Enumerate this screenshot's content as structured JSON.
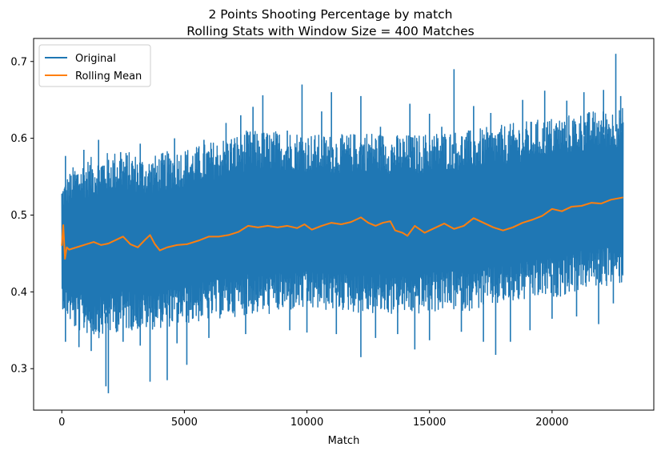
{
  "chart_data": {
    "type": "line",
    "title": "2 Points Shooting Percentage by match",
    "subtitle": "Rolling Stats with Window Size = 400 Matches",
    "xlabel": "Match",
    "ylabel": "",
    "xlim": [
      -1150,
      24150
    ],
    "ylim": [
      0.246,
      0.73
    ],
    "xticks": [
      0,
      5000,
      10000,
      15000,
      20000
    ],
    "xtick_labels": [
      "0",
      "5000",
      "10000",
      "15000",
      "20000"
    ],
    "yticks": [
      0.3,
      0.4,
      0.5,
      0.6,
      0.7
    ],
    "ytick_labels": [
      "0.3",
      "0.4",
      "0.5",
      "0.6",
      "0.7"
    ],
    "grid": false,
    "legend": "top-left",
    "series": [
      {
        "name": "Original",
        "color": "#1f77b4",
        "x_range": [
          0,
          22900
        ],
        "band_low": [
          [
            0,
            0.38
          ],
          [
            500,
            0.35
          ],
          [
            1500,
            0.34
          ],
          [
            2500,
            0.35
          ],
          [
            3500,
            0.35
          ],
          [
            4500,
            0.355
          ],
          [
            5500,
            0.36
          ],
          [
            6500,
            0.365
          ],
          [
            7500,
            0.37
          ],
          [
            8500,
            0.37
          ],
          [
            9500,
            0.375
          ],
          [
            10500,
            0.375
          ],
          [
            11500,
            0.375
          ],
          [
            12500,
            0.37
          ],
          [
            13500,
            0.37
          ],
          [
            14500,
            0.37
          ],
          [
            15500,
            0.375
          ],
          [
            16500,
            0.375
          ],
          [
            17500,
            0.38
          ],
          [
            18500,
            0.385
          ],
          [
            19500,
            0.39
          ],
          [
            20500,
            0.395
          ],
          [
            21500,
            0.405
          ],
          [
            22900,
            0.41
          ]
        ],
        "band_high": [
          [
            0,
            0.54
          ],
          [
            500,
            0.565
          ],
          [
            1500,
            0.58
          ],
          [
            2500,
            0.585
          ],
          [
            3500,
            0.575
          ],
          [
            4500,
            0.585
          ],
          [
            5500,
            0.59
          ],
          [
            6500,
            0.6
          ],
          [
            7500,
            0.61
          ],
          [
            8500,
            0.61
          ],
          [
            9500,
            0.61
          ],
          [
            10500,
            0.605
          ],
          [
            11500,
            0.605
          ],
          [
            12500,
            0.61
          ],
          [
            13500,
            0.605
          ],
          [
            14500,
            0.605
          ],
          [
            15500,
            0.61
          ],
          [
            16500,
            0.61
          ],
          [
            17500,
            0.615
          ],
          [
            18500,
            0.62
          ],
          [
            19500,
            0.625
          ],
          [
            20500,
            0.63
          ],
          [
            21500,
            0.635
          ],
          [
            22900,
            0.64
          ]
        ],
        "spikes_high": [
          [
            150,
            0.577
          ],
          [
            900,
            0.585
          ],
          [
            1500,
            0.598
          ],
          [
            2400,
            0.582
          ],
          [
            3200,
            0.593
          ],
          [
            4600,
            0.6
          ],
          [
            5800,
            0.598
          ],
          [
            6700,
            0.62
          ],
          [
            7300,
            0.63
          ],
          [
            7800,
            0.641
          ],
          [
            8200,
            0.656
          ],
          [
            9200,
            0.61
          ],
          [
            9800,
            0.67
          ],
          [
            10600,
            0.635
          ],
          [
            11000,
            0.66
          ],
          [
            12200,
            0.655
          ],
          [
            13000,
            0.615
          ],
          [
            14200,
            0.645
          ],
          [
            15000,
            0.632
          ],
          [
            15500,
            0.615
          ],
          [
            16000,
            0.69
          ],
          [
            16800,
            0.642
          ],
          [
            17500,
            0.633
          ],
          [
            18800,
            0.65
          ],
          [
            19700,
            0.662
          ],
          [
            20600,
            0.649
          ],
          [
            21300,
            0.66
          ],
          [
            22100,
            0.663
          ],
          [
            22600,
            0.71
          ],
          [
            22800,
            0.655
          ]
        ],
        "spikes_low": [
          [
            150,
            0.335
          ],
          [
            700,
            0.328
          ],
          [
            1200,
            0.323
          ],
          [
            1800,
            0.277
          ],
          [
            1900,
            0.268
          ],
          [
            2500,
            0.335
          ],
          [
            3200,
            0.33
          ],
          [
            3600,
            0.283
          ],
          [
            4300,
            0.285
          ],
          [
            4700,
            0.333
          ],
          [
            5100,
            0.305
          ],
          [
            6000,
            0.34
          ],
          [
            7500,
            0.345
          ],
          [
            9300,
            0.35
          ],
          [
            10000,
            0.347
          ],
          [
            11200,
            0.345
          ],
          [
            12200,
            0.315
          ],
          [
            12800,
            0.34
          ],
          [
            13700,
            0.345
          ],
          [
            14400,
            0.325
          ],
          [
            15000,
            0.337
          ],
          [
            16300,
            0.348
          ],
          [
            17200,
            0.335
          ],
          [
            17700,
            0.318
          ],
          [
            18300,
            0.335
          ],
          [
            19100,
            0.35
          ],
          [
            20000,
            0.365
          ],
          [
            21000,
            0.368
          ],
          [
            21900,
            0.358
          ],
          [
            22500,
            0.385
          ]
        ]
      },
      {
        "name": "Rolling Mean",
        "color": "#ff7f0e",
        "x": [
          0,
          60,
          130,
          200,
          300,
          600,
          1000,
          1300,
          1600,
          1900,
          2300,
          2500,
          2800,
          3100,
          3400,
          3600,
          3800,
          4000,
          4300,
          4700,
          5100,
          5600,
          6000,
          6400,
          6800,
          7200,
          7600,
          8000,
          8400,
          8800,
          9200,
          9600,
          9900,
          10200,
          10600,
          11000,
          11400,
          11800,
          12200,
          12500,
          12800,
          13100,
          13400,
          13600,
          13900,
          14100,
          14400,
          14800,
          15200,
          15600,
          16000,
          16400,
          16800,
          17200,
          17600,
          18000,
          18400,
          18800,
          19200,
          19600,
          20000,
          20400,
          20800,
          21200,
          21600,
          22000,
          22400,
          22900
        ],
        "values": [
          0.46,
          0.487,
          0.443,
          0.458,
          0.455,
          0.458,
          0.462,
          0.465,
          0.461,
          0.463,
          0.469,
          0.472,
          0.462,
          0.458,
          0.468,
          0.474,
          0.462,
          0.454,
          0.458,
          0.461,
          0.462,
          0.467,
          0.472,
          0.472,
          0.474,
          0.478,
          0.486,
          0.484,
          0.486,
          0.484,
          0.486,
          0.483,
          0.488,
          0.481,
          0.486,
          0.49,
          0.488,
          0.491,
          0.497,
          0.49,
          0.486,
          0.49,
          0.492,
          0.48,
          0.477,
          0.473,
          0.486,
          0.477,
          0.483,
          0.489,
          0.482,
          0.486,
          0.496,
          0.49,
          0.484,
          0.48,
          0.484,
          0.49,
          0.494,
          0.499,
          0.508,
          0.505,
          0.511,
          0.512,
          0.516,
          0.515,
          0.52,
          0.523
        ]
      }
    ]
  }
}
